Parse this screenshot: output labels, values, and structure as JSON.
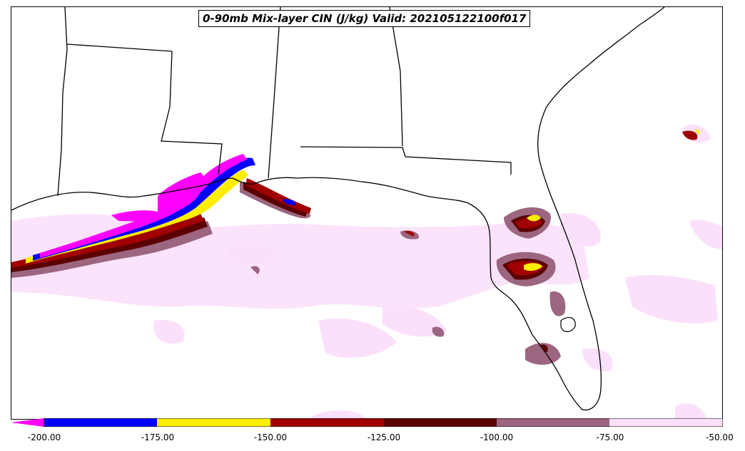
{
  "title": "0-90mb Mix-layer CIN (J/kg) Valid: 202105122100f017",
  "colorbar": {
    "labels": [
      "-200.00",
      "-175.00",
      "-150.00",
      "-125.00",
      "-100.00",
      "-75.00",
      "-50.00"
    ],
    "colors": {
      "below_min": "#ff00ff",
      "band_200_175": "#0000ff",
      "band_175_150": "#ffee00",
      "band_150_125": "#a00000",
      "band_125_100": "#5a0000",
      "band_100_75": "#9c6680",
      "band_75_50": "#fbe0fb"
    }
  }
}
